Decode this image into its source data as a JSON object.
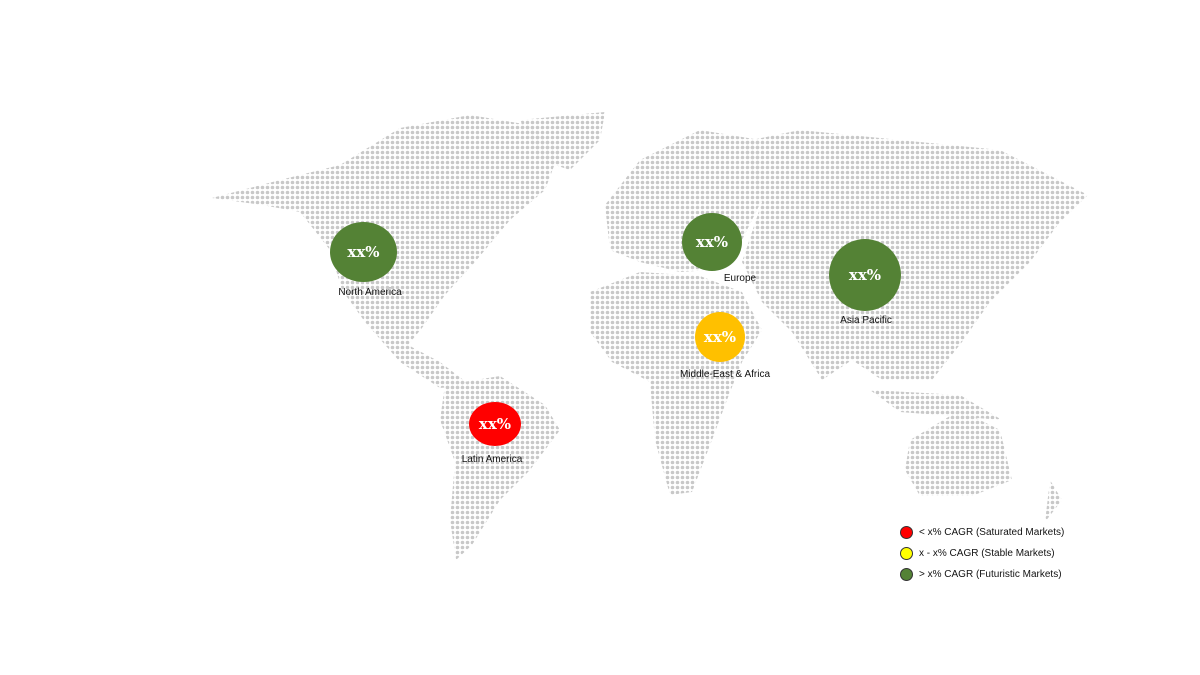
{
  "regions": [
    {
      "name": "North America",
      "value": "xx%",
      "color": "#548235"
    },
    {
      "name": "Europe",
      "value": "xx%",
      "color": "#548235"
    },
    {
      "name": "Asia Pacific",
      "value": "xx%",
      "color": "#548235"
    },
    {
      "name": "Middle-East & Africa",
      "value": "xx%",
      "color": "#ffc000"
    },
    {
      "name": "Latin America",
      "value": "xx%",
      "color": "#ff0000"
    }
  ],
  "legend": [
    {
      "label": "< x% CAGR (Saturated Markets)",
      "color": "#ff0000"
    },
    {
      "label": "x - x% CAGR (Stable Markets)",
      "color": "#ffff00"
    },
    {
      "label": "> x% CAGR (Futuristic Markets)",
      "color": "#548235"
    }
  ],
  "map_dot_color": "#c8c8c8"
}
